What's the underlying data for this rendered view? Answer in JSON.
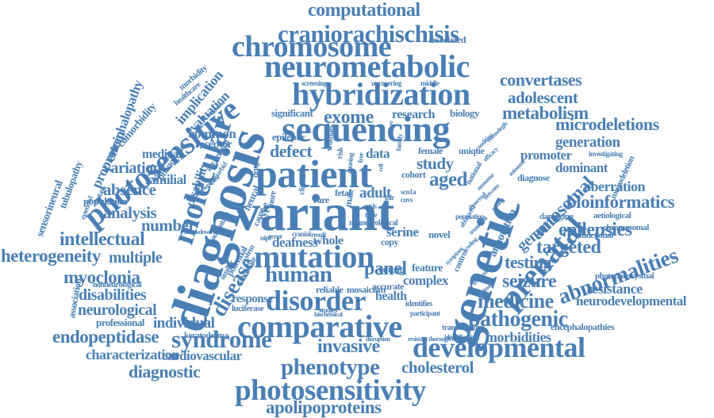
{
  "cloud": {
    "color": "#4a7fb5",
    "words": [
      {
        "text": "computational"
      },
      {
        "text": "craniorachischisis"
      },
      {
        "text": "chromosome"
      },
      {
        "text": "neurometabolic"
      },
      {
        "text": "hybridization"
      },
      {
        "text": "sequencing"
      },
      {
        "text": "patient"
      },
      {
        "text": "variant"
      },
      {
        "text": "mutation"
      },
      {
        "text": "human"
      },
      {
        "text": "disorder"
      },
      {
        "text": "comparative"
      },
      {
        "text": "developmental"
      },
      {
        "text": "phenotype"
      },
      {
        "text": "photosensitivity"
      },
      {
        "text": "apolipoproteins"
      },
      {
        "text": "genetic"
      },
      {
        "text": "diagnosis"
      },
      {
        "text": "molecular"
      },
      {
        "text": "photosensitive"
      },
      {
        "text": "prenatal"
      },
      {
        "text": "abnormalities"
      },
      {
        "text": "bioinformatics"
      },
      {
        "text": "microdeletions"
      },
      {
        "text": "metabolism"
      },
      {
        "text": "adolescent"
      },
      {
        "text": "convertases"
      },
      {
        "text": "exome"
      },
      {
        "text": "research"
      },
      {
        "text": "biology"
      },
      {
        "text": "defect"
      },
      {
        "text": "study"
      },
      {
        "text": "aged"
      },
      {
        "text": "data"
      },
      {
        "text": "adult"
      },
      {
        "text": "syndrome"
      },
      {
        "text": "invasive"
      },
      {
        "text": "panel"
      },
      {
        "text": "endopeptidase"
      },
      {
        "text": "characterization"
      },
      {
        "text": "cardiovascular"
      },
      {
        "text": "diagnostic"
      },
      {
        "text": "cholesterol"
      },
      {
        "text": "pathogenic"
      },
      {
        "text": "morbidities"
      },
      {
        "text": "medicine"
      },
      {
        "text": "seizure"
      },
      {
        "text": "testing"
      },
      {
        "text": "targeted"
      },
      {
        "text": "epilepsies"
      },
      {
        "text": "genome"
      },
      {
        "text": "autosomal"
      },
      {
        "text": "aberration"
      },
      {
        "text": "generation"
      },
      {
        "text": "promoter"
      },
      {
        "text": "dominant"
      },
      {
        "text": "resistance"
      },
      {
        "text": "photoparoxysmal"
      },
      {
        "text": "neurodevelopmental"
      },
      {
        "text": "encephalopathies"
      },
      {
        "text": "intellectual"
      },
      {
        "text": "heterogeneity"
      },
      {
        "text": "multiple"
      },
      {
        "text": "myoclonia"
      },
      {
        "text": "disabilities"
      },
      {
        "text": "neurological"
      },
      {
        "text": "individual"
      },
      {
        "text": "professional"
      },
      {
        "text": "analysis"
      },
      {
        "text": "number"
      },
      {
        "text": "absence"
      },
      {
        "text": "familial"
      },
      {
        "text": "variation"
      },
      {
        "text": "medical"
      },
      {
        "text": "phenotypic"
      },
      {
        "text": "comorbidity"
      },
      {
        "text": "proprotein"
      },
      {
        "text": "encephalopathy"
      },
      {
        "text": "sensorineural"
      },
      {
        "text": "tubulopathy"
      },
      {
        "text": "association"
      },
      {
        "text": "implication"
      },
      {
        "text": "evaluation"
      },
      {
        "text": "receptor"
      },
      {
        "text": "common"
      },
      {
        "text": "disability"
      },
      {
        "text": "disease"
      },
      {
        "text": "epileptic"
      },
      {
        "text": "significant"
      },
      {
        "text": "associated"
      },
      {
        "text": "screening"
      },
      {
        "text": "uncovering"
      },
      {
        "text": "middle"
      },
      {
        "text": "female"
      },
      {
        "text": "unique"
      },
      {
        "text": "cohort"
      },
      {
        "text": "serine"
      },
      {
        "text": "novel"
      },
      {
        "text": "whole"
      },
      {
        "text": "deafness"
      },
      {
        "text": "young"
      },
      {
        "text": "feature"
      },
      {
        "text": "health"
      },
      {
        "text": "complex"
      },
      {
        "text": "accurate"
      },
      {
        "text": "reliable"
      },
      {
        "text": "mosaicism"
      },
      {
        "text": "studies"
      },
      {
        "text": "response"
      },
      {
        "text": "luciferase"
      },
      {
        "text": "identifies"
      },
      {
        "text": "participant"
      },
      {
        "text": "transcription"
      },
      {
        "text": "identification"
      },
      {
        "text": "disruption"
      },
      {
        "text": "resistant thorough negative"
      },
      {
        "text": "biochemical"
      },
      {
        "text": "keratoderma"
      },
      {
        "text": "diagnose"
      },
      {
        "text": "investigating"
      },
      {
        "text": "microdeletion"
      },
      {
        "text": "damaging"
      },
      {
        "text": "aetiological"
      },
      {
        "text": "functional"
      },
      {
        "text": "chromosomal"
      },
      {
        "text": "annotation"
      },
      {
        "text": "population"
      },
      {
        "text": "nonneurological"
      },
      {
        "text": "tube"
      },
      {
        "text": "ntds"
      },
      {
        "text": "ldlr"
      },
      {
        "text": "scn1a"
      },
      {
        "text": "cnvs"
      },
      {
        "text": "copy"
      },
      {
        "text": "rare"
      },
      {
        "text": "fetal"
      },
      {
        "text": "neural"
      },
      {
        "text": "cause"
      },
      {
        "text": "nipt"
      },
      {
        "text": "error"
      },
      {
        "text": "result"
      },
      {
        "text": "cranial"
      },
      {
        "text": "drug"
      },
      {
        "text": "type"
      },
      {
        "text": "more"
      },
      {
        "text": "male"
      },
      {
        "text": "woman"
      },
      {
        "text": "risk"
      },
      {
        "text": "free"
      },
      {
        "text": "causing"
      },
      {
        "text": "clinical"
      },
      {
        "text": "national"
      },
      {
        "text": "control"
      },
      {
        "text": "system"
      },
      {
        "text": "potential"
      },
      {
        "text": "candidate"
      },
      {
        "text": "similar"
      },
      {
        "text": "advantage"
      },
      {
        "text": "morbidity"
      },
      {
        "text": "healthcare"
      },
      {
        "text": "suggestive"
      },
      {
        "text": "additional"
      },
      {
        "text": "development"
      },
      {
        "text": "knockdown"
      },
      {
        "text": "extended"
      },
      {
        "text": "available"
      },
      {
        "text": "archetypal"
      },
      {
        "text": "comorbid"
      },
      {
        "text": "vismodegib"
      },
      {
        "text": "condition"
      },
      {
        "text": "efficacy"
      },
      {
        "text": "missense"
      },
      {
        "text": "nonsense"
      },
      {
        "text": "between"
      },
      {
        "text": "setting"
      },
      {
        "text": "observed"
      },
      {
        "text": "treatment"
      },
      {
        "text": "frequency"
      },
      {
        "text": "evidence"
      },
      {
        "text": "symptom"
      },
      {
        "text": "abnormal"
      },
      {
        "text": "coding"
      },
      {
        "text": "family"
      },
      {
        "text": "driver"
      },
      {
        "text": "model"
      },
      {
        "text": "cell"
      }
    ]
  }
}
